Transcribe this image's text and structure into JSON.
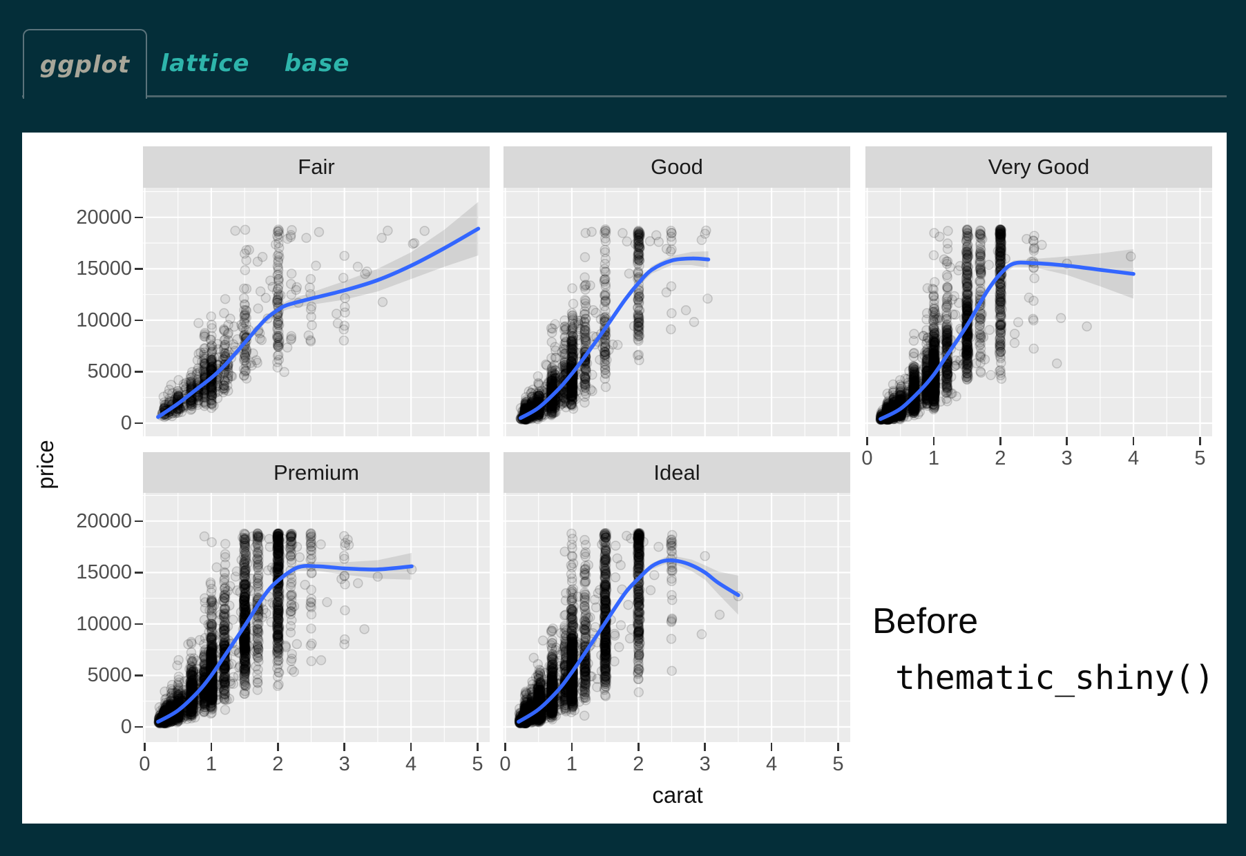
{
  "tabs": [
    {
      "label": "ggplot",
      "active": true
    },
    {
      "label": "lattice",
      "active": false
    },
    {
      "label": "base",
      "active": false
    }
  ],
  "annotation": {
    "line1": "Before",
    "line2": "thematic_shiny()"
  },
  "axes": {
    "x_title": "carat",
    "y_title": "price",
    "x_tick_values": [
      0,
      1,
      2,
      3,
      4,
      5
    ],
    "x_tick_labels": [
      "0",
      "1",
      "2",
      "3",
      "4",
      "5"
    ],
    "y_tick_values": [
      0,
      5000,
      10000,
      15000,
      20000
    ],
    "y_tick_labels": [
      "0",
      "5000",
      "10000",
      "15000",
      "20000"
    ]
  },
  "colors": {
    "page_bg": "#042e39",
    "card_bg": "#ffffff",
    "panel_bg": "#ebebeb",
    "strip_bg": "#d9d9d9",
    "grid": "#ffffff",
    "smooth": "#3366ff",
    "ribbon": "rgba(70,70,70,0.15)",
    "point_fill": "rgba(0,0,0,0.07)",
    "point_stroke": "rgba(0,0,0,0.16)",
    "axis_text": "#4d4d4d",
    "strip_text": "#1a1a1a",
    "tick_mark": "#333333",
    "tab_active_text": "#a8a699",
    "tab_inactive_text": "#2eb5ab",
    "tab_border": "#5b737b"
  },
  "chart_data": {
    "type": "scatter",
    "title": "",
    "xlabel": "carat",
    "ylabel": "price",
    "x_range": [
      -0.04,
      5.2
    ],
    "y_range": [
      -1480,
      22760
    ],
    "grid": true,
    "facets": [
      {
        "label": "Fair",
        "row": 0,
        "col": 0,
        "show_x": false,
        "seed": 11,
        "n": 750,
        "sigma": 0.35,
        "carat_max": 5.01,
        "smooth": [
          [
            0.2,
            600
          ],
          [
            0.5,
            1900
          ],
          [
            0.8,
            3400
          ],
          [
            1.0,
            4400
          ],
          [
            1.2,
            5600
          ],
          [
            1.5,
            7800
          ],
          [
            1.8,
            10000
          ],
          [
            2.0,
            11000
          ],
          [
            2.15,
            11500
          ],
          [
            2.5,
            12100
          ],
          [
            3.0,
            12900
          ],
          [
            3.5,
            13900
          ],
          [
            4.0,
            15300
          ],
          [
            4.5,
            17000
          ],
          [
            5.01,
            18900
          ]
        ],
        "ci": [
          [
            0.2,
            250
          ],
          [
            1,
            250
          ],
          [
            2,
            350
          ],
          [
            2.5,
            600
          ],
          [
            3,
            900
          ],
          [
            3.5,
            1100
          ],
          [
            4,
            1300
          ],
          [
            4.5,
            1800
          ],
          [
            5.01,
            2600
          ]
        ],
        "clusters": [
          [
            0.3,
            2
          ],
          [
            0.41,
            2
          ],
          [
            0.5,
            4
          ],
          [
            0.7,
            7
          ],
          [
            0.8,
            5
          ],
          [
            0.9,
            9
          ],
          [
            1.0,
            10
          ],
          [
            1.01,
            6
          ],
          [
            1.1,
            4
          ],
          [
            1.2,
            5
          ],
          [
            1.25,
            3
          ],
          [
            1.5,
            6
          ],
          [
            1.52,
            3
          ],
          [
            1.7,
            2
          ],
          [
            2.0,
            7
          ],
          [
            2.01,
            4
          ],
          [
            2.2,
            2
          ],
          [
            2.5,
            1.5
          ],
          [
            3.0,
            1
          ],
          [
            3.4,
            0.3
          ]
        ],
        "tail": {
          "p": 0.25,
          "min": 0.25,
          "lambda": 0.8
        },
        "extras": [
          [
            3.65,
            18700
          ],
          [
            4.05,
            17500
          ],
          [
            3.2,
            15200
          ],
          [
            2.9,
            9700
          ]
        ]
      },
      {
        "label": "Good",
        "row": 0,
        "col": 1,
        "show_x": false,
        "seed": 22,
        "n": 1700,
        "sigma": 0.42,
        "carat_max": 3.05,
        "smooth": [
          [
            0.23,
            500
          ],
          [
            0.5,
            1500
          ],
          [
            0.8,
            3300
          ],
          [
            1.0,
            4800
          ],
          [
            1.2,
            6500
          ],
          [
            1.5,
            9200
          ],
          [
            1.8,
            12000
          ],
          [
            2.0,
            13600
          ],
          [
            2.2,
            14900
          ],
          [
            2.5,
            15800
          ],
          [
            2.8,
            16000
          ],
          [
            3.05,
            15900
          ]
        ],
        "ci": [
          [
            0.23,
            200
          ],
          [
            1,
            200
          ],
          [
            2,
            300
          ],
          [
            2.5,
            450
          ],
          [
            3.05,
            800
          ]
        ],
        "clusters": [
          [
            0.3,
            10
          ],
          [
            0.31,
            6
          ],
          [
            0.4,
            7
          ],
          [
            0.5,
            9
          ],
          [
            0.7,
            9
          ],
          [
            0.75,
            4
          ],
          [
            0.9,
            5
          ],
          [
            1.0,
            10
          ],
          [
            1.01,
            7
          ],
          [
            1.2,
            5
          ],
          [
            1.5,
            6
          ],
          [
            2.0,
            4
          ],
          [
            2.01,
            2
          ],
          [
            2.5,
            0.8
          ]
        ],
        "tail": {
          "p": 0.2,
          "min": 0.23,
          "lambda": 0.5
        },
        "extras": [
          [
            3.0,
            18400
          ],
          [
            2.95,
            17800
          ],
          [
            3.04,
            12100
          ]
        ]
      },
      {
        "label": "Very Good",
        "row": 0,
        "col": 2,
        "show_x": true,
        "seed": 33,
        "n": 3200,
        "sigma": 0.42,
        "carat_max": 3.0,
        "smooth": [
          [
            0.2,
            400
          ],
          [
            0.5,
            1400
          ],
          [
            0.8,
            3200
          ],
          [
            1.0,
            4700
          ],
          [
            1.2,
            6600
          ],
          [
            1.5,
            9500
          ],
          [
            1.8,
            12800
          ],
          [
            2.0,
            14500
          ],
          [
            2.2,
            15500
          ],
          [
            2.5,
            15550
          ],
          [
            3.0,
            15300
          ],
          [
            3.5,
            14900
          ],
          [
            4.0,
            14500
          ]
        ],
        "ci": [
          [
            0.2,
            150
          ],
          [
            1,
            150
          ],
          [
            2,
            250
          ],
          [
            2.5,
            400
          ],
          [
            3,
            900
          ],
          [
            3.5,
            1600
          ],
          [
            4,
            2400
          ]
        ],
        "clusters": [
          [
            0.3,
            9
          ],
          [
            0.32,
            6
          ],
          [
            0.4,
            8
          ],
          [
            0.5,
            9
          ],
          [
            0.7,
            9
          ],
          [
            0.71,
            5
          ],
          [
            0.9,
            6
          ],
          [
            1.0,
            10
          ],
          [
            1.01,
            8
          ],
          [
            1.2,
            6
          ],
          [
            1.5,
            8
          ],
          [
            1.51,
            4
          ],
          [
            1.7,
            3
          ],
          [
            2.0,
            6
          ],
          [
            2.01,
            3
          ],
          [
            2.5,
            0.6
          ]
        ],
        "tail": {
          "p": 0.18,
          "min": 0.2,
          "lambda": 0.45
        },
        "extras": [
          [
            3.0,
            15500
          ],
          [
            3.96,
            16200
          ],
          [
            3.3,
            9400
          ],
          [
            2.85,
            5800
          ]
        ]
      },
      {
        "label": "Premium",
        "row": 1,
        "col": 0,
        "show_x": true,
        "seed": 44,
        "n": 3400,
        "sigma": 0.42,
        "carat_max": 4.01,
        "smooth": [
          [
            0.2,
            500
          ],
          [
            0.5,
            1600
          ],
          [
            0.8,
            3400
          ],
          [
            1.0,
            5000
          ],
          [
            1.2,
            6900
          ],
          [
            1.5,
            9800
          ],
          [
            1.8,
            12800
          ],
          [
            2.0,
            14200
          ],
          [
            2.3,
            15500
          ],
          [
            2.6,
            15600
          ],
          [
            3.0,
            15400
          ],
          [
            3.5,
            15300
          ],
          [
            4.01,
            15600
          ]
        ],
        "ci": [
          [
            0.2,
            150
          ],
          [
            1,
            150
          ],
          [
            2,
            250
          ],
          [
            2.5,
            400
          ],
          [
            3,
            600
          ],
          [
            3.5,
            900
          ],
          [
            4.01,
            1300
          ]
        ],
        "clusters": [
          [
            0.3,
            8
          ],
          [
            0.32,
            5
          ],
          [
            0.4,
            6
          ],
          [
            0.5,
            7
          ],
          [
            0.7,
            8
          ],
          [
            0.72,
            4
          ],
          [
            0.9,
            5
          ],
          [
            1.0,
            10
          ],
          [
            1.01,
            8
          ],
          [
            1.2,
            7
          ],
          [
            1.5,
            9
          ],
          [
            1.51,
            5
          ],
          [
            1.7,
            4
          ],
          [
            2.0,
            8
          ],
          [
            2.01,
            5
          ],
          [
            2.2,
            2
          ],
          [
            2.5,
            1
          ],
          [
            3.0,
            0.5
          ]
        ],
        "tail": {
          "p": 0.2,
          "min": 0.21,
          "lambda": 0.5
        },
        "extras": [
          [
            4.01,
            15300
          ],
          [
            3.5,
            14600
          ],
          [
            3.05,
            18200
          ],
          [
            3.3,
            9500
          ]
        ]
      },
      {
        "label": "Ideal",
        "row": 1,
        "col": 1,
        "show_x": true,
        "seed": 55,
        "n": 3800,
        "sigma": 0.45,
        "carat_max": 3.5,
        "smooth": [
          [
            0.2,
            500
          ],
          [
            0.5,
            1700
          ],
          [
            0.8,
            3600
          ],
          [
            1.0,
            5300
          ],
          [
            1.2,
            7200
          ],
          [
            1.5,
            10100
          ],
          [
            1.8,
            13000
          ],
          [
            2.0,
            14400
          ],
          [
            2.2,
            15600
          ],
          [
            2.4,
            16150
          ],
          [
            2.6,
            16100
          ],
          [
            2.8,
            15700
          ],
          [
            3.0,
            15000
          ],
          [
            3.2,
            14000
          ],
          [
            3.5,
            12800
          ]
        ],
        "ci": [
          [
            0.2,
            150
          ],
          [
            1,
            150
          ],
          [
            2,
            250
          ],
          [
            2.5,
            350
          ],
          [
            3,
            700
          ],
          [
            3.2,
            1100
          ],
          [
            3.5,
            1900
          ]
        ],
        "clusters": [
          [
            0.3,
            10
          ],
          [
            0.31,
            8
          ],
          [
            0.4,
            7
          ],
          [
            0.5,
            9
          ],
          [
            0.53,
            5
          ],
          [
            0.7,
            9
          ],
          [
            0.71,
            5
          ],
          [
            0.9,
            4
          ],
          [
            1.0,
            10
          ],
          [
            1.01,
            7
          ],
          [
            1.2,
            5
          ],
          [
            1.5,
            7
          ],
          [
            1.51,
            4
          ],
          [
            2.0,
            6
          ],
          [
            2.01,
            3
          ],
          [
            2.5,
            0.8
          ]
        ],
        "tail": {
          "p": 0.15,
          "min": 0.21,
          "lambda": 0.4
        },
        "extras": [
          [
            3.5,
            12700
          ],
          [
            3.22,
            10900
          ],
          [
            3.0,
            16600
          ],
          [
            2.95,
            9000
          ]
        ]
      }
    ]
  }
}
